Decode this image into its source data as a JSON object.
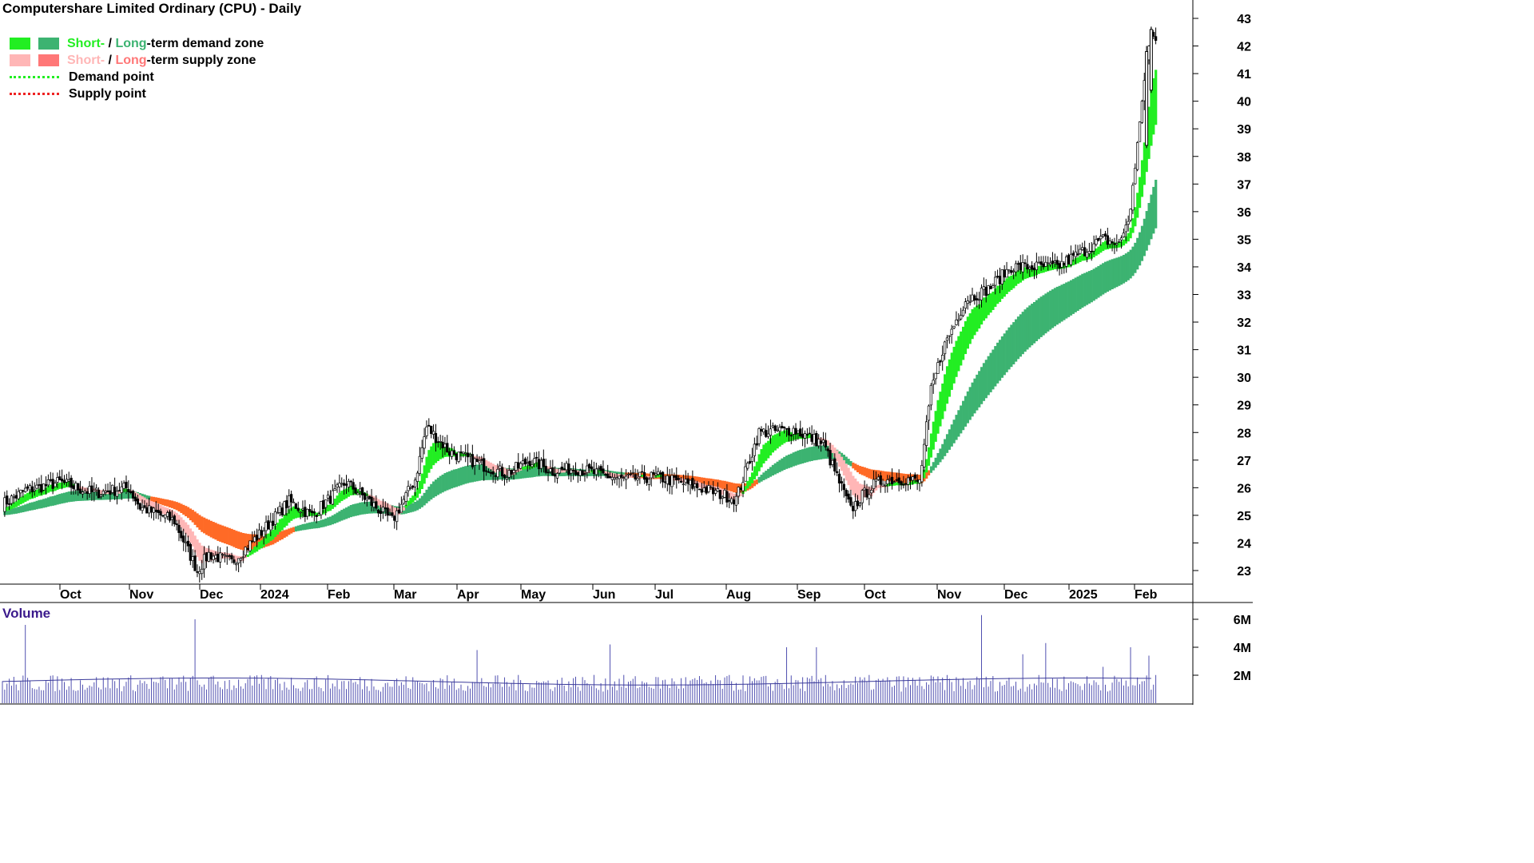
{
  "title": "Computershare Limited Ordinary (CPU) - Daily",
  "legend": {
    "demand_short": "Short-",
    "demand_sep": " / ",
    "demand_long": "Long",
    "demand_rest": "-term demand zone",
    "supply_short": "Short-",
    "supply_sep": " / ",
    "supply_long": "Long",
    "supply_rest": "-term supply zone",
    "demand_point": "Demand point",
    "supply_point": "Supply point"
  },
  "colors": {
    "short_demand": "#22ee22",
    "long_demand": "#3cb371",
    "short_supply": "#ffb6b6",
    "long_supply": "#ff7777",
    "long_zone_transition": "#ff6a26",
    "demand_point": "#22ee22",
    "supply_point": "#ee2222",
    "volume": "#5050b0",
    "volume_label": "#3b1a8c"
  },
  "volume_label": "Volume",
  "chart_data": {
    "type": "candlestick",
    "title": "Computershare Limited Ordinary (CPU) - Daily",
    "price_axis": {
      "position": "right",
      "ticks": [
        23,
        24,
        25,
        26,
        27,
        28,
        29,
        30,
        31,
        32,
        33,
        34,
        35,
        36,
        37,
        38,
        39,
        40,
        41,
        42,
        43
      ],
      "range": [
        22.6,
        43.3
      ]
    },
    "volume_axis": {
      "position": "right",
      "ticks": [
        "2M",
        "4M",
        "6M"
      ],
      "tick_values": [
        2,
        4,
        6
      ],
      "unit": "M"
    },
    "month_labels": [
      "Oct",
      "Nov",
      "Dec",
      "2024",
      "Feb",
      "Mar",
      "Apr",
      "May",
      "Jun",
      "Jul",
      "Aug",
      "Sep",
      "Oct",
      "Nov",
      "Dec",
      "2025",
      "Feb"
    ],
    "price_path": {
      "x_days": [
        0,
        10,
        25,
        40,
        55,
        60,
        75,
        85,
        90,
        100,
        112,
        125,
        135,
        150,
        160,
        170,
        180,
        185,
        195,
        210,
        220,
        230,
        240,
        250,
        270,
        285,
        300,
        320,
        330,
        345,
        358,
        370,
        375,
        380,
        385,
        395,
        400,
        405,
        410,
        420,
        430,
        440,
        460,
        470,
        480,
        487,
        492,
        495,
        499,
        501,
        503
      ],
      "close": [
        25.4,
        25.9,
        26.2,
        25.8,
        26.0,
        25.3,
        24.8,
        23.0,
        23.6,
        23.3,
        24.3,
        25.5,
        25.0,
        26.2,
        25.5,
        24.8,
        26.3,
        28.2,
        27.3,
        26.8,
        26.5,
        27.0,
        26.6,
        26.7,
        26.3,
        26.4,
        26.1,
        25.6,
        28.0,
        28.1,
        27.6,
        25.2,
        25.7,
        26.1,
        26.3,
        26.3,
        26.2,
        29.5,
        31.0,
        32.8,
        33.2,
        34.0,
        34.0,
        34.5,
        35.0,
        34.8,
        36.0,
        38.5,
        41.5,
        42.5,
        42.2
      ]
    },
    "volume_approx_M": {
      "typical": 1.5,
      "spikes": [
        5.6,
        6.0,
        3.8,
        4.0,
        6.3,
        3.5,
        4.3,
        2.6,
        4.0,
        3.4,
        4.2,
        4.0
      ]
    },
    "zones": {
      "short_term_band": "green when rising (demand), pink when falling (supply)",
      "long_term_band": "dark green (demand), orange during transitions"
    }
  }
}
